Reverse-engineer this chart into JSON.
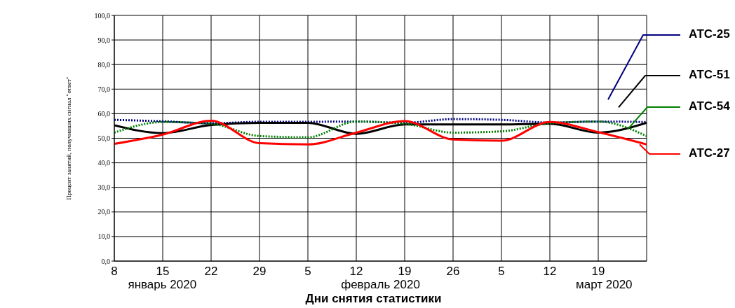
{
  "chart_data": {
    "type": "line",
    "xlabel": "Дни снятия статистики",
    "ylabel": "Процент занятий, получивших сигнал \"ответ\"",
    "categories": [
      "8",
      "15",
      "22",
      "29",
      "5",
      "12",
      "19",
      "26",
      "5",
      "12",
      "19",
      null
    ],
    "annotations": [
      "январь 2020",
      "февраль 2020",
      "март 2020"
    ],
    "ylim": [
      0,
      100
    ],
    "yticks": [
      {
        "value": 0,
        "label": "0,0"
      },
      {
        "value": 10,
        "label": "10,0"
      },
      {
        "value": 20,
        "label": "20,0"
      },
      {
        "value": 30,
        "label": "30,0"
      },
      {
        "value": 40,
        "label": "40,0"
      },
      {
        "value": 50,
        "label": "50,0"
      },
      {
        "value": 60,
        "label": "60,0"
      },
      {
        "value": 70,
        "label": "70,0"
      },
      {
        "value": 80,
        "label": "80,0"
      },
      {
        "value": 90,
        "label": "90,0"
      },
      {
        "value": 100,
        "label": "100,0"
      }
    ],
    "grid": true,
    "legend": "right",
    "marker": "none",
    "series": [
      {
        "name": "АТС-25",
        "color": "#000080",
        "line_style": "dotted",
        "values": [
          57.5,
          56.9,
          56.1,
          56.7,
          56.7,
          56.8,
          56.3,
          57.8,
          57.5,
          56.4,
          56.8,
          56.6
        ]
      },
      {
        "name": "АТС-51",
        "color": "#000000",
        "line_style": "solid",
        "values": [
          55.3,
          52.1,
          55.4,
          56.3,
          56.3,
          51.8,
          55.6,
          55.6,
          55.6,
          55.9,
          52.3,
          56.3
        ]
      },
      {
        "name": "АТС-54",
        "color": "#008000",
        "line_style": "dotted",
        "values": [
          52.3,
          56.6,
          55.9,
          50.9,
          50.4,
          56.8,
          55.9,
          52.3,
          52.8,
          56.1,
          56.8,
          50.9
        ]
      },
      {
        "name": "АТС-27",
        "color": "#ff0000",
        "line_style": "solid",
        "values": [
          47.7,
          51.5,
          57.1,
          48.0,
          47.5,
          52.3,
          57.0,
          49.5,
          49.0,
          56.6,
          52.5,
          47.5
        ]
      }
    ]
  }
}
